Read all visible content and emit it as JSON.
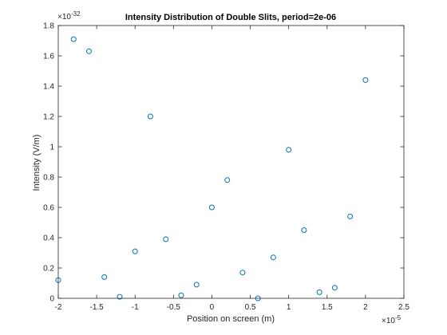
{
  "chart_data": {
    "type": "scatter",
    "title": "Intensity Distribution of Double Slits, period=2e-06",
    "xlabel": "Position on screen (m)",
    "ylabel": "Intensity (V/m)",
    "x_multiplier": {
      "base": "×10",
      "exponent": "-5"
    },
    "y_multiplier": {
      "base": "×10",
      "exponent": "-32"
    },
    "xlim": [
      -2,
      2.5
    ],
    "ylim": [
      0,
      1.8
    ],
    "xticks": [
      "-2",
      "-1.5",
      "-1",
      "-0.5",
      "0",
      "0.5",
      "1",
      "1.5",
      "2",
      "2.5"
    ],
    "yticks": [
      "0",
      "0.2",
      "0.4",
      "0.6",
      "0.8",
      "1",
      "1.2",
      "1.4",
      "1.6",
      "1.8"
    ],
    "grid": false,
    "marker": "open-circle",
    "marker_color": "#0072bd",
    "points": [
      {
        "x": -2.0,
        "y": 0.12
      },
      {
        "x": -1.8,
        "y": 1.71
      },
      {
        "x": -1.6,
        "y": 1.63
      },
      {
        "x": -1.4,
        "y": 0.14
      },
      {
        "x": -1.2,
        "y": 0.01
      },
      {
        "x": -1.0,
        "y": 0.31
      },
      {
        "x": -0.8,
        "y": 1.2
      },
      {
        "x": -0.6,
        "y": 0.39
      },
      {
        "x": -0.4,
        "y": 0.02
      },
      {
        "x": -0.2,
        "y": 0.09
      },
      {
        "x": 0.0,
        "y": 0.6
      },
      {
        "x": 0.2,
        "y": 0.78
      },
      {
        "x": 0.4,
        "y": 0.17
      },
      {
        "x": 0.6,
        "y": 0.0
      },
      {
        "x": 0.8,
        "y": 0.27
      },
      {
        "x": 1.0,
        "y": 0.98
      },
      {
        "x": 1.2,
        "y": 0.45
      },
      {
        "x": 1.4,
        "y": 0.04
      },
      {
        "x": 1.6,
        "y": 0.07
      },
      {
        "x": 1.8,
        "y": 0.54
      },
      {
        "x": 2.0,
        "y": 1.44
      }
    ]
  }
}
